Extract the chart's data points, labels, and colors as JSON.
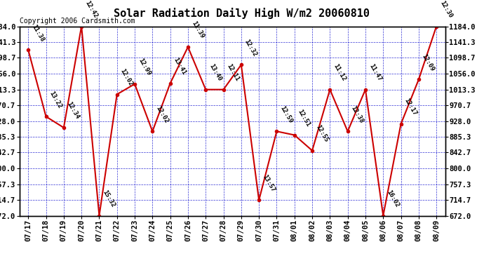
{
  "title": "Solar Radiation Daily High W/m2 20060810",
  "copyright": "Copyright 2006 Cardsmith.com",
  "dates": [
    "07/17",
    "07/18",
    "07/19",
    "07/20",
    "07/21",
    "07/22",
    "07/23",
    "07/24",
    "07/25",
    "07/26",
    "07/27",
    "07/28",
    "07/29",
    "07/30",
    "07/31",
    "08/01",
    "08/02",
    "08/03",
    "08/04",
    "08/05",
    "08/06",
    "08/07",
    "08/08",
    "08/09"
  ],
  "values": [
    1120,
    940,
    910,
    1184,
    672,
    1000,
    1028,
    900,
    1030,
    1128,
    1013,
    1013,
    1080,
    714,
    900,
    890,
    848,
    1013,
    900,
    1013,
    672,
    920,
    1040,
    1184
  ],
  "labels": [
    "11:38",
    "13:22",
    "12:34",
    "12:42",
    "15:32",
    "12:02",
    "12:99",
    "12:02",
    "13:41",
    "11:39",
    "13:40",
    "12:11",
    "12:32",
    "13:57",
    "12:59",
    "12:51",
    "12:55",
    "11:12",
    "12:38",
    "11:47",
    "16:02",
    "12:17",
    "12:09",
    "12:30"
  ],
  "ylim": [
    672.0,
    1184.0
  ],
  "yticks": [
    672.0,
    714.7,
    757.3,
    800.0,
    842.7,
    885.3,
    928.0,
    970.7,
    1013.3,
    1056.0,
    1098.7,
    1141.3,
    1184.0
  ],
  "line_color": "#cc0000",
  "marker_color": "#cc0000",
  "grid_color": "#0000cc",
  "bg_color": "#ffffff",
  "plot_bg_color": "#ffffff",
  "title_fontsize": 11,
  "label_fontsize": 6.5,
  "tick_fontsize": 7.5,
  "copyright_fontsize": 7
}
